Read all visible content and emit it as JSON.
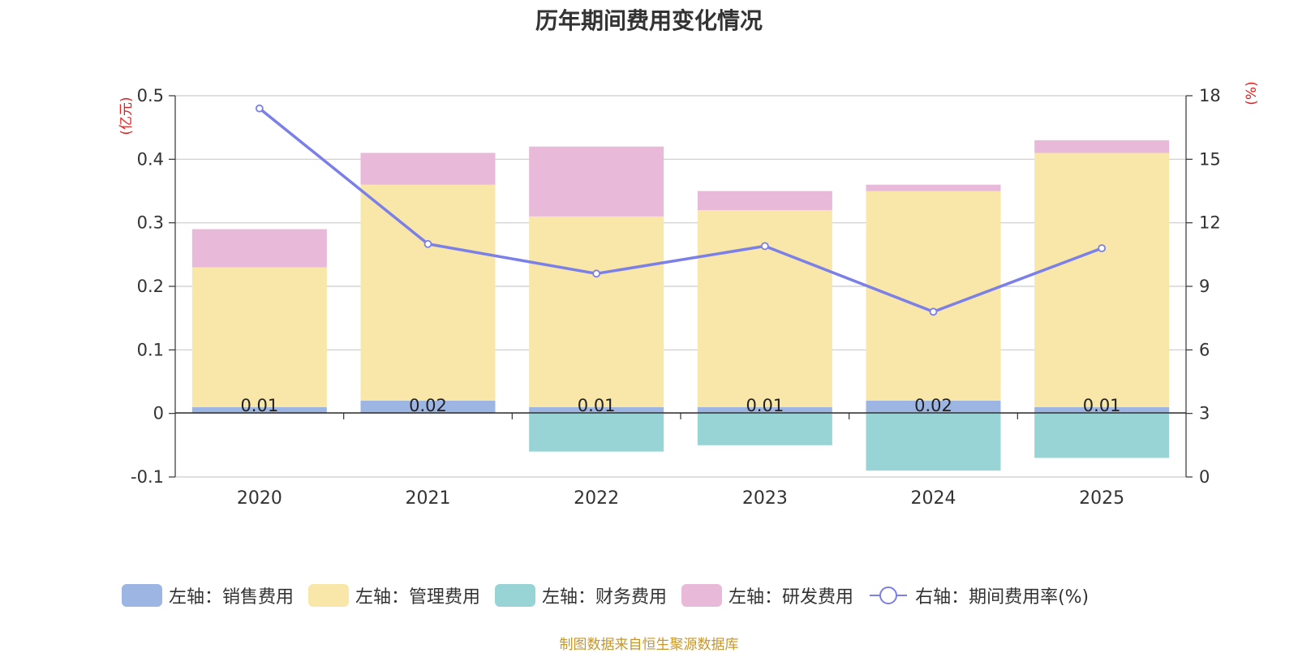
{
  "chart_data": {
    "type": "bar",
    "stacked": true,
    "title": "历年期间费用变化情况",
    "categories": [
      "2020",
      "2021",
      "2022",
      "2023",
      "2024",
      "2025"
    ],
    "left_axis": {
      "unit_label": "(亿元)",
      "ylim": [
        -0.1,
        0.5
      ],
      "ticks": [
        -0.1,
        0,
        0.1,
        0.2,
        0.3,
        0.4,
        0.5
      ],
      "tick_labels": [
        "-0.1",
        "0",
        "0.1",
        "0.2",
        "0.3",
        "0.4",
        "0.5"
      ]
    },
    "right_axis": {
      "unit_label": "(%)",
      "ylim": [
        0,
        18
      ],
      "ticks": [
        0,
        3,
        6,
        9,
        12,
        15,
        18
      ],
      "tick_labels": [
        "0",
        "3",
        "6",
        "9",
        "12",
        "15",
        "18"
      ]
    },
    "series": [
      {
        "name": "左轴：销售费用",
        "axis": "left",
        "color": "#9db5e2",
        "values": [
          0.01,
          0.02,
          0.01,
          0.01,
          0.02,
          0.01
        ],
        "labels": [
          "0.01",
          "0.02",
          "0.01",
          "0.01",
          "0.02",
          "0.01"
        ]
      },
      {
        "name": "左轴：管理费用",
        "axis": "left",
        "color": "#f8e7a8",
        "values": [
          0.22,
          0.34,
          0.3,
          0.31,
          0.33,
          0.4
        ]
      },
      {
        "name": "左轴：财务费用",
        "axis": "left",
        "color": "#98d4d5",
        "values": [
          0,
          0,
          -0.06,
          -0.05,
          -0.09,
          -0.07
        ]
      },
      {
        "name": "左轴：研发费用",
        "axis": "left",
        "color": "#e8b9d8",
        "values": [
          0.06,
          0.05,
          0.11,
          0.03,
          0.01,
          0.02
        ]
      },
      {
        "name": "右轴：期间费用率(%)",
        "axis": "right",
        "type": "line",
        "color": "#7b7fe8",
        "values": [
          17.4,
          11.0,
          9.6,
          10.9,
          7.8,
          10.8
        ]
      }
    ],
    "grid": true
  },
  "source_note": "制图数据来自恒生聚源数据库"
}
